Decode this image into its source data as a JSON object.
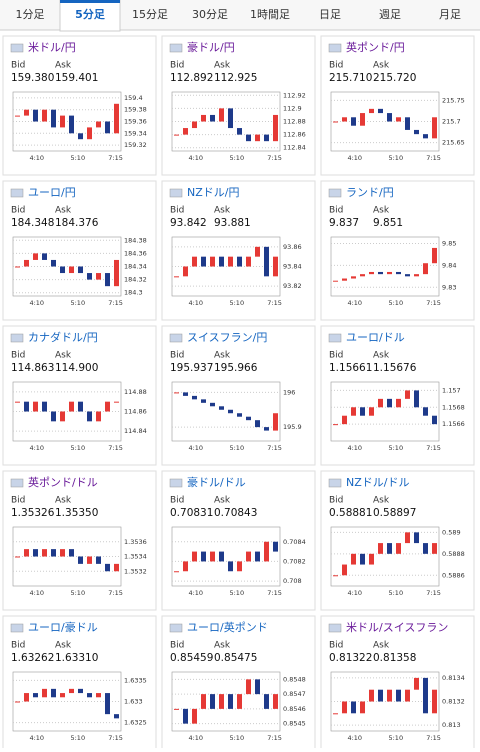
{
  "tabs": [
    "1分足",
    "5分足",
    "15分足",
    "30分足",
    "1時間足",
    "日足",
    "週足",
    "月足"
  ],
  "active_tab": 1,
  "labels": {
    "bid": "Bid",
    "ask": "Ask"
  },
  "panels": [
    {
      "title": "米ドル/円",
      "visited": true,
      "bid": "159.380",
      "ask": "159.401",
      "ylim": [
        159.31,
        159.41
      ],
      "yticks": [
        159.4,
        159.38,
        159.36,
        159.34,
        159.32
      ],
      "xticks": [
        "4:10",
        "5:10",
        "7:15"
      ],
      "closes": [
        159.37,
        159.38,
        159.36,
        159.38,
        159.35,
        159.37,
        159.34,
        159.33,
        159.35,
        159.36,
        159.34,
        159.39
      ]
    },
    {
      "title": "豪ドル/円",
      "visited": true,
      "bid": "112.892",
      "ask": "112.925",
      "ylim": [
        112.835,
        112.925
      ],
      "yticks": [
        112.92,
        112.9,
        112.88,
        112.86,
        112.84
      ],
      "xticks": [
        "4:10",
        "5:10",
        "7:15"
      ],
      "closes": [
        112.86,
        112.87,
        112.88,
        112.89,
        112.88,
        112.9,
        112.87,
        112.86,
        112.85,
        112.86,
        112.85,
        112.89
      ]
    },
    {
      "title": "英ポンド/円",
      "visited": true,
      "bid": "215.710",
      "ask": "215.720",
      "ylim": [
        215.63,
        215.77
      ],
      "yticks": [
        215.75,
        215.7,
        215.65
      ],
      "xticks": [
        "4:10",
        "5:10",
        "7:15"
      ],
      "closes": [
        215.7,
        215.71,
        215.69,
        215.72,
        215.73,
        215.72,
        215.7,
        215.71,
        215.68,
        215.67,
        215.66,
        215.71
      ]
    },
    {
      "title": "ユーロ/円",
      "visited": false,
      "bid": "184.348",
      "ask": "184.376",
      "ylim": [
        184.295,
        184.385
      ],
      "yticks": [
        184.38,
        184.36,
        184.34,
        184.32,
        184.3
      ],
      "xticks": [
        "4:10",
        "5:10",
        "7:15"
      ],
      "closes": [
        184.34,
        184.35,
        184.36,
        184.35,
        184.34,
        184.33,
        184.34,
        184.33,
        184.32,
        184.33,
        184.31,
        184.35
      ]
    },
    {
      "title": "NZドル/円",
      "visited": false,
      "bid": "93.842",
      "ask": "93.881",
      "ylim": [
        93.81,
        93.87
      ],
      "yticks": [
        93.86,
        93.84,
        93.82
      ],
      "xticks": [
        "4:10",
        "5:10",
        "7:15"
      ],
      "closes": [
        93.83,
        93.84,
        93.85,
        93.84,
        93.85,
        93.84,
        93.85,
        93.84,
        93.85,
        93.86,
        93.83,
        93.85
      ]
    },
    {
      "title": "ランド/円",
      "visited": false,
      "bid": "9.837",
      "ask": "9.851",
      "ylim": [
        9.826,
        9.853
      ],
      "yticks": [
        9.85,
        9.84,
        9.83
      ],
      "xticks": [
        "4:10",
        "5:10",
        "7:15"
      ],
      "closes": [
        9.833,
        9.834,
        9.835,
        9.836,
        9.837,
        9.836,
        9.837,
        9.836,
        9.835,
        9.836,
        9.841,
        9.848
      ]
    },
    {
      "title": "カナダドル/円",
      "visited": false,
      "bid": "114.863",
      "ask": "114.900",
      "ylim": [
        114.83,
        114.89
      ],
      "yticks": [
        114.88,
        114.86,
        114.84
      ],
      "xticks": [
        "4:10",
        "5:10",
        "7:15"
      ],
      "closes": [
        114.87,
        114.86,
        114.87,
        114.86,
        114.85,
        114.86,
        114.87,
        114.86,
        114.85,
        114.86,
        114.87,
        114.87
      ]
    },
    {
      "title": "スイスフラン/円",
      "visited": false,
      "bid": "195.937",
      "ask": "195.966",
      "ylim": [
        195.86,
        196.03
      ],
      "yticks": [
        196,
        195.9
      ],
      "xticks": [
        "4:10",
        "5:10",
        "7:15"
      ],
      "closes": [
        196.0,
        195.99,
        195.98,
        195.97,
        195.96,
        195.95,
        195.94,
        195.93,
        195.92,
        195.9,
        195.89,
        195.94
      ]
    },
    {
      "title": "ユーロ/ドル",
      "visited": false,
      "bid": "1.15661",
      "ask": "1.15676",
      "ylim": [
        1.1564,
        1.1571
      ],
      "yticks": [
        1.157,
        1.1568,
        1.1566
      ],
      "xticks": [
        "4:10",
        "5:10",
        "7:15"
      ],
      "closes": [
        1.1566,
        1.1567,
        1.1568,
        1.1567,
        1.1568,
        1.1569,
        1.1568,
        1.1569,
        1.157,
        1.1568,
        1.1567,
        1.1566
      ]
    },
    {
      "title": "英ポンド/ドル",
      "visited": true,
      "bid": "1.35326",
      "ask": "1.35350",
      "ylim": [
        1.353,
        1.3538
      ],
      "yticks": [
        1.3536,
        1.3534,
        1.3532
      ],
      "xticks": [
        "4:10",
        "5:10",
        "7:15"
      ],
      "closes": [
        1.3534,
        1.3535,
        1.3534,
        1.3535,
        1.3534,
        1.3535,
        1.3534,
        1.3533,
        1.3534,
        1.3533,
        1.3532,
        1.3533
      ]
    },
    {
      "title": "豪ドル/ドル",
      "visited": false,
      "bid": "0.70831",
      "ask": "0.70843",
      "ylim": [
        0.70795,
        0.70855
      ],
      "yticks": [
        0.7084,
        0.7082,
        0.708
      ],
      "xticks": [
        "4:10",
        "5:10",
        "7:15"
      ],
      "closes": [
        0.7081,
        0.7082,
        0.7083,
        0.7082,
        0.7083,
        0.7082,
        0.7081,
        0.7082,
        0.7083,
        0.7082,
        0.7084,
        0.7083
      ]
    },
    {
      "title": "NZドル/ドル",
      "visited": false,
      "bid": "0.58881",
      "ask": "0.58897",
      "ylim": [
        0.5885,
        0.58905
      ],
      "yticks": [
        0.589,
        0.5888,
        0.5886
      ],
      "xticks": [
        "4:10",
        "5:10",
        "7:15"
      ],
      "closes": [
        0.5886,
        0.5887,
        0.5888,
        0.5887,
        0.5888,
        0.5889,
        0.5888,
        0.5889,
        0.589,
        0.5889,
        0.5888,
        0.5889
      ]
    },
    {
      "title": "ユーロ/豪ドル",
      "visited": false,
      "bid": "1.63262",
      "ask": "1.63310",
      "ylim": [
        1.6323,
        1.6337
      ],
      "yticks": [
        1.6335,
        1.633,
        1.6325
      ],
      "xticks": [
        "4:10",
        "5:10",
        "7:15"
      ],
      "closes": [
        1.633,
        1.6332,
        1.6331,
        1.6333,
        1.6331,
        1.6332,
        1.6333,
        1.6332,
        1.6331,
        1.6332,
        1.6327,
        1.6326
      ]
    },
    {
      "title": "ユーロ/英ポンド",
      "visited": false,
      "bid": "0.85459",
      "ask": "0.85475",
      "ylim": [
        0.85445,
        0.85485
      ],
      "yticks": [
        0.8548,
        0.8547,
        0.8546,
        0.8545
      ],
      "xticks": [
        "4:10",
        "5:10",
        "7:15"
      ],
      "closes": [
        0.8546,
        0.8545,
        0.8546,
        0.8547,
        0.8546,
        0.8547,
        0.8546,
        0.8547,
        0.8548,
        0.8547,
        0.8546,
        0.8547
      ]
    },
    {
      "title": "米ドル/スイスフラン",
      "visited": true,
      "bid": "0.81322",
      "ask": "0.81358",
      "ylim": [
        0.81295,
        0.81345
      ],
      "yticks": [
        0.8134,
        0.8132,
        0.813
      ],
      "xticks": [
        "4:10",
        "5:10",
        "7:15"
      ],
      "closes": [
        0.8131,
        0.8132,
        0.8131,
        0.8132,
        0.8133,
        0.8132,
        0.8133,
        0.8132,
        0.8133,
        0.8134,
        0.8131,
        0.8133
      ]
    }
  ]
}
